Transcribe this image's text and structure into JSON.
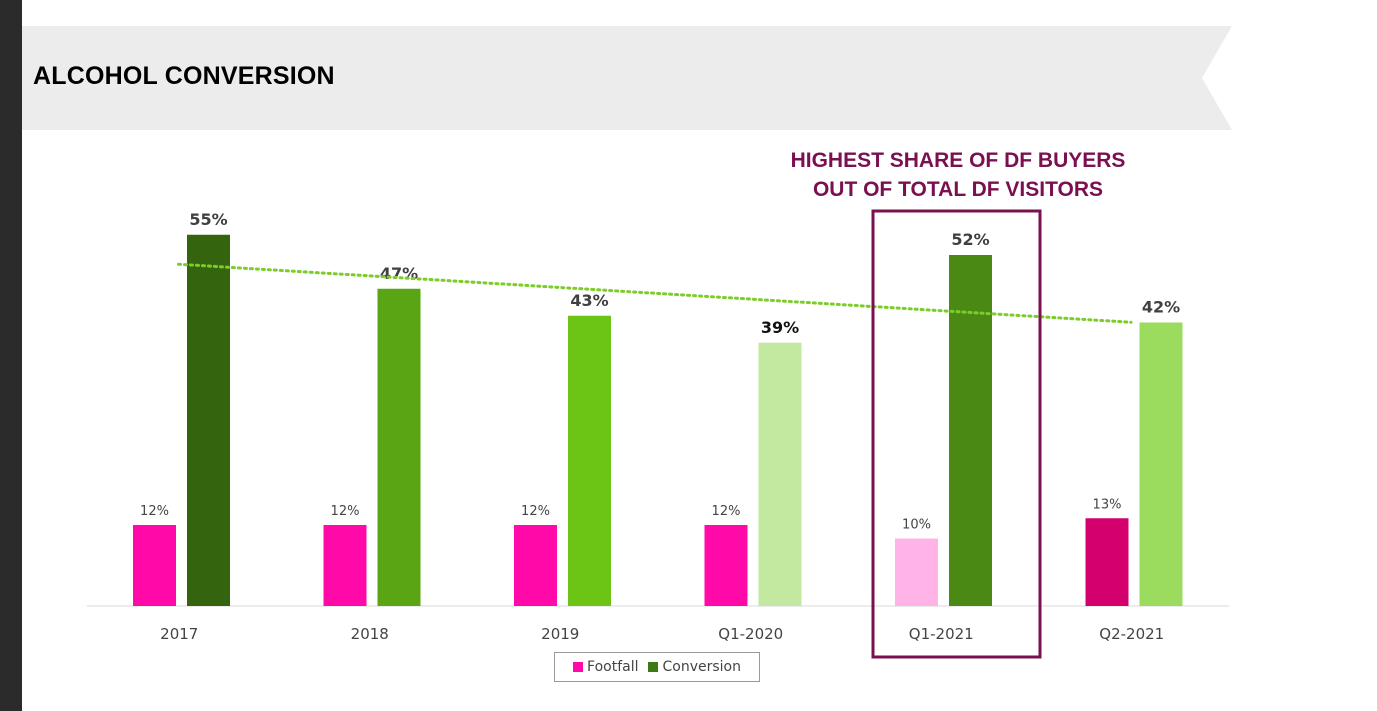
{
  "slide": {
    "title": "ALCOHOL CONVERSION",
    "callout_line1": "HIGHEST SHARE OF DF BUYERS",
    "callout_line2": "OUT OF TOTAL DF VISITORS"
  },
  "colors": {
    "header_band": "#ececec",
    "callout": "#7a1050",
    "trend": "#7ccc2a",
    "footfall_legend": "#ff0aa9",
    "conversion_legend": "#3d7a16"
  },
  "chart_data": {
    "type": "bar",
    "categories": [
      "2017",
      "2018",
      "2019",
      "Q1-2020",
      "Q1-2021",
      "Q2-2021"
    ],
    "series": [
      {
        "name": "Footfall",
        "values": [
          12,
          12,
          12,
          12,
          10,
          13
        ],
        "labels": [
          "12%",
          "12%",
          "12%",
          "12%",
          "10%",
          "13%"
        ],
        "colors": [
          "#ff0aa9",
          "#ff0aa9",
          "#ff0aa9",
          "#ff0aa9",
          "#ffb3e6",
          "#d4006e"
        ]
      },
      {
        "name": "Conversion",
        "values": [
          55,
          47,
          43,
          39,
          52,
          42
        ],
        "labels": [
          "55%",
          "47%",
          "43%",
          "39%",
          "52%",
          "42%"
        ],
        "colors": [
          "#35640e",
          "#5aa514",
          "#6cc515",
          "#c3e8a0",
          "#4a8a14",
          "#9bdb5d"
        ]
      }
    ],
    "trendline": {
      "series": "Conversion",
      "type": "linear",
      "style": "dotted"
    },
    "highlight": {
      "category": "Q1-2021",
      "color": "#7a1050"
    },
    "ylim": [
      0,
      55
    ],
    "legend": "bottom-center",
    "grid": false,
    "xlabel": "",
    "ylabel": ""
  },
  "legend": {
    "footfall_label": "Footfall",
    "conversion_label": "Conversion"
  }
}
